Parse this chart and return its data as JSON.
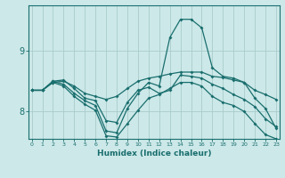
{
  "title": "",
  "xlabel": "Humidex (Indice chaleur)",
  "bg_color": "#cce8e8",
  "grid_color": "#aacccc",
  "line_color": "#1a6e6e",
  "x_ticks": [
    0,
    1,
    2,
    3,
    4,
    5,
    6,
    7,
    8,
    9,
    10,
    11,
    12,
    13,
    14,
    15,
    16,
    17,
    18,
    19,
    20,
    21,
    22,
    23
  ],
  "y_ticks": [
    8,
    9
  ],
  "ylim": [
    7.55,
    9.75
  ],
  "xlim": [
    -0.3,
    23.3
  ],
  "line1": [
    8.35,
    8.35,
    8.48,
    8.5,
    8.42,
    8.3,
    8.25,
    8.2,
    8.25,
    8.38,
    8.5,
    8.55,
    8.58,
    8.62,
    8.65,
    8.65,
    8.65,
    8.58,
    8.56,
    8.52,
    8.48,
    8.35,
    8.28,
    8.2
  ],
  "line2": [
    8.35,
    8.35,
    8.5,
    8.52,
    8.38,
    8.22,
    8.18,
    7.85,
    7.82,
    8.15,
    8.35,
    8.4,
    8.3,
    8.35,
    8.6,
    8.58,
    8.55,
    8.45,
    8.38,
    8.28,
    8.2,
    8.08,
    7.88,
    7.75
  ],
  "line3": [
    8.35,
    8.35,
    8.5,
    8.45,
    8.3,
    8.18,
    8.1,
    7.68,
    7.65,
    8.05,
    8.3,
    8.48,
    8.42,
    9.22,
    9.52,
    9.52,
    9.38,
    8.72,
    8.58,
    8.55,
    8.48,
    8.22,
    8.05,
    7.72
  ],
  "line4": [
    8.35,
    8.35,
    8.48,
    8.42,
    8.25,
    8.12,
    8.02,
    7.6,
    7.58,
    7.8,
    8.02,
    8.22,
    8.28,
    8.38,
    8.48,
    8.48,
    8.42,
    8.25,
    8.15,
    8.1,
    8.0,
    7.8,
    7.62,
    7.55
  ]
}
